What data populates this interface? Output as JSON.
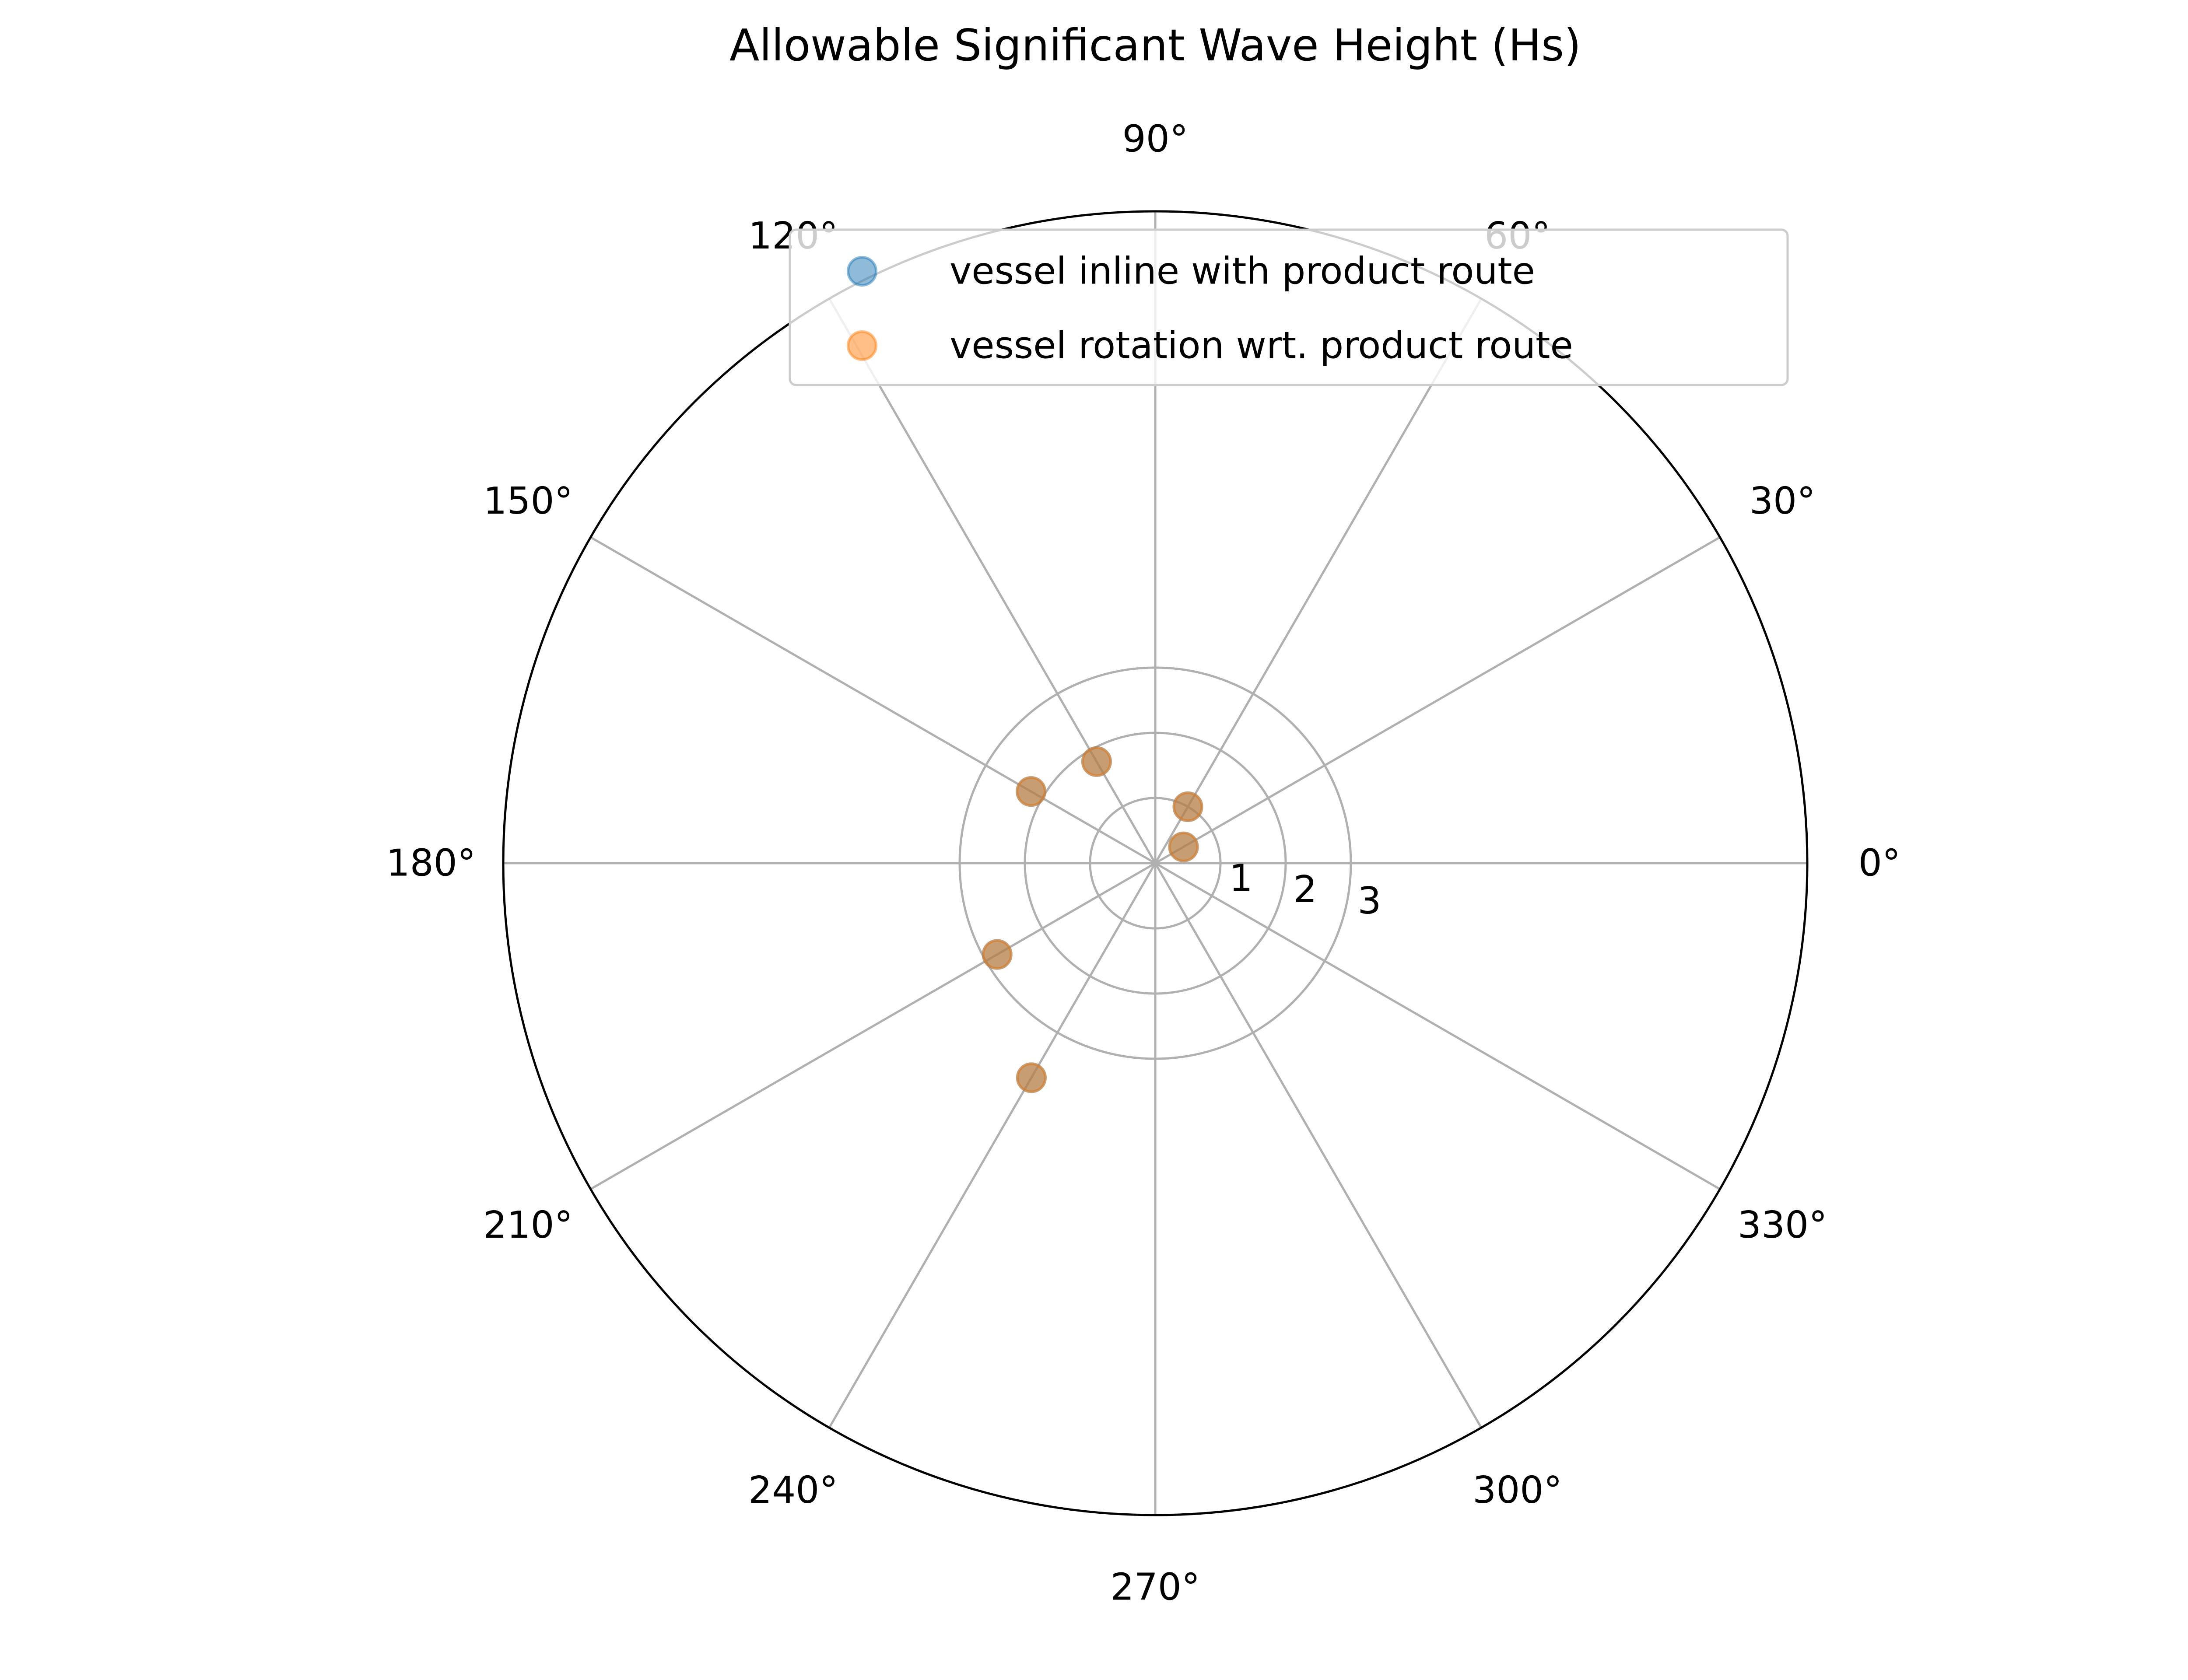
{
  "chart_data": {
    "type": "scatter",
    "projection": "polar",
    "title": "Allowable Significant Wave Height (Hs)",
    "angle_unit": "degrees",
    "angular_ticks": [
      "0°",
      "30°",
      "60°",
      "90°",
      "120°",
      "150°",
      "180°",
      "210°",
      "240°",
      "270°",
      "300°",
      "330°"
    ],
    "angular_tick_values": [
      0,
      30,
      60,
      90,
      120,
      150,
      180,
      210,
      240,
      270,
      300,
      330
    ],
    "radial_ticks": [
      "1",
      "2",
      "3"
    ],
    "radial_tick_values": [
      1,
      2,
      3
    ],
    "rlim": [
      0,
      10
    ],
    "grid": true,
    "legend_position": "upper right",
    "series": [
      {
        "name": "vessel inline with product route",
        "color": "#1f77b4",
        "alpha": 0.5,
        "points": [
          {
            "theta": 30,
            "r": 0.5
          },
          {
            "theta": 60,
            "r": 1.0
          },
          {
            "theta": 120,
            "r": 1.8
          },
          {
            "theta": 150,
            "r": 2.2
          },
          {
            "theta": 210,
            "r": 2.8
          },
          {
            "theta": 240,
            "r": 3.8
          }
        ]
      },
      {
        "name": "vessel rotation wrt. product route",
        "color": "#ff7f0e",
        "alpha": 0.5,
        "points": [
          {
            "theta": 30,
            "r": 0.5
          },
          {
            "theta": 60,
            "r": 1.0
          },
          {
            "theta": 120,
            "r": 1.8
          },
          {
            "theta": 150,
            "r": 2.2
          },
          {
            "theta": 210,
            "r": 2.8
          },
          {
            "theta": 240,
            "r": 3.8
          }
        ]
      }
    ]
  }
}
